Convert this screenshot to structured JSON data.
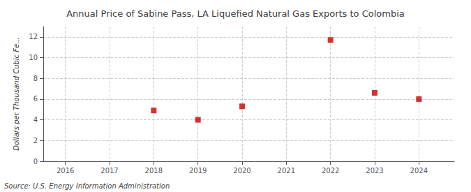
{
  "chart_data": {
    "type": "scatter",
    "title": "Annual Price of Sabine Pass, LA Liquefied Natural Gas Exports to Colombia",
    "ylabel": "Dollars per Thousand Cubic Fe...",
    "annotations": [
      "Source: U.S. Energy Information Administration"
    ],
    "x": [
      2018,
      2019,
      2020,
      2022,
      2023,
      2024
    ],
    "values": [
      4.9,
      4.0,
      5.3,
      11.7,
      6.6,
      6.0
    ],
    "color": "#cc0000",
    "marker": "square",
    "xlim": [
      2015.5,
      2024.8
    ],
    "xticks": [
      2016,
      2017,
      2018,
      2019,
      2020,
      2021,
      2022,
      2023,
      2024
    ],
    "ylim": [
      0,
      13
    ],
    "yticks": [
      0,
      2,
      4,
      6,
      8,
      10,
      12
    ],
    "grid": true
  }
}
